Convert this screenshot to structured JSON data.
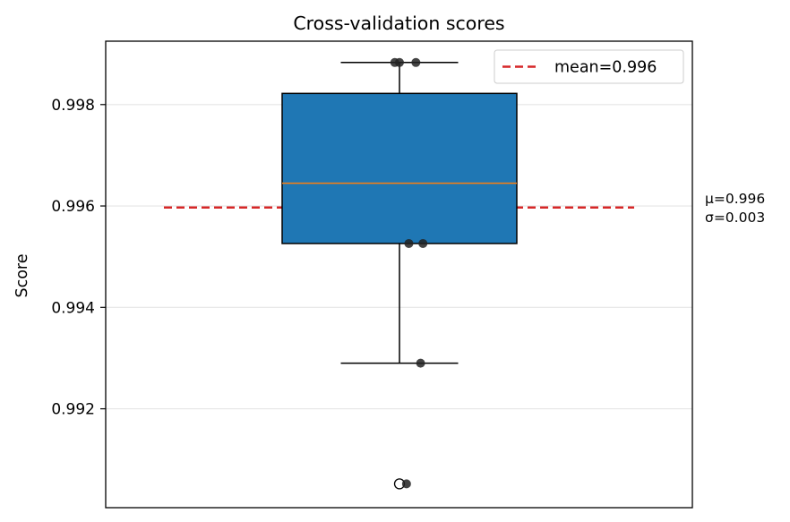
{
  "chart_data": {
    "type": "box",
    "title": "Cross-validation scores",
    "xlabel": "",
    "ylabel": "Score",
    "ylim": [
      0.99005,
      0.99925
    ],
    "yticks": [
      0.992,
      0.994,
      0.996,
      0.998
    ],
    "ytick_labels": [
      "0.992",
      "0.994",
      "0.996",
      "0.998"
    ],
    "grid": "horizontal",
    "legend_position": "top-right",
    "box": {
      "q1": 0.99526,
      "median": 0.99645,
      "q3": 0.99822,
      "whisker_low": 0.9929,
      "whisker_high": 0.99883,
      "fill": "#1f77b4",
      "median_color": "#ff7f0e"
    },
    "outliers": [
      0.99052
    ],
    "points": [
      {
        "x": 0.98,
        "y": 0.99883
      },
      {
        "x": 1.0,
        "y": 0.99883
      },
      {
        "x": 1.07,
        "y": 0.99883
      },
      {
        "x": 1.04,
        "y": 0.99526
      },
      {
        "x": 1.1,
        "y": 0.99526
      },
      {
        "x": 1.09,
        "y": 0.9929
      },
      {
        "x": 1.03,
        "y": 0.99052
      }
    ],
    "mean": {
      "value": 0.99597,
      "label": "mean=0.996",
      "color": "#d62728"
    },
    "annotation": {
      "line1": "μ=0.996",
      "line2": "σ=0.003"
    },
    "colors": {
      "points": "#222222",
      "grid": "#e5e5e5"
    }
  }
}
